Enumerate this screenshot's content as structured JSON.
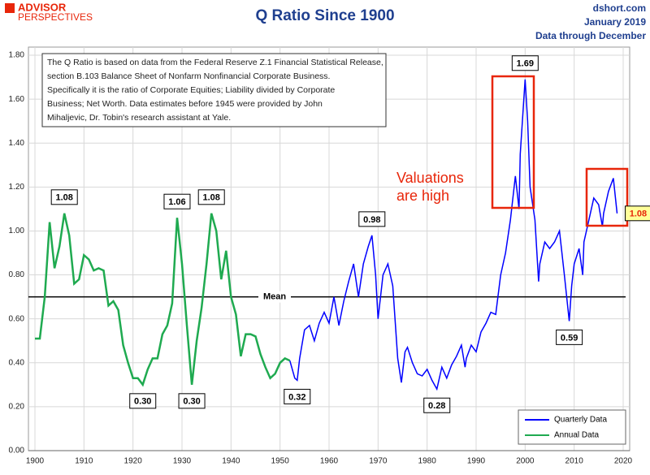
{
  "header": {
    "logo_top": "ADVISOR",
    "logo_bottom": "PERSPECTIVES",
    "source": "dshort.com",
    "date": "January 2019",
    "through": "Data through December"
  },
  "chart_data": {
    "type": "line",
    "title": "Q Ratio Since 1900",
    "note": [
      "The Q Ratio is based on data from the Federal Reserve Z.1 Financial Statistical Release,",
      "section B.103  Balance Sheet of Nonfarm Nonfinancial Corporate Business.",
      "Specifically it is the ratio  of Corporate Equities; Liability divided by Corporate",
      "Business; Net Worth.  Data estimates before 1945 were provided by John",
      "Mihaljevic, Dr. Tobin's research assistant at Yale."
    ],
    "comment": [
      "Valuations",
      "are high"
    ],
    "mean": {
      "value": 0.7,
      "label": "Mean"
    },
    "xlim": [
      1900,
      2020
    ],
    "xticks": [
      1900,
      1910,
      1920,
      1930,
      1940,
      1950,
      1960,
      1970,
      1980,
      1990,
      2000,
      2010,
      2020
    ],
    "ylim": [
      0,
      1.8
    ],
    "yticks": [
      {
        "value": 0,
        "label": "0.00"
      },
      {
        "value": 0.2,
        "label": "0.20"
      },
      {
        "value": 0.4,
        "label": "0.40"
      },
      {
        "value": 0.6,
        "label": "0.60"
      },
      {
        "value": 0.8,
        "label": "0.80"
      },
      {
        "value": 1,
        "label": "1.00"
      },
      {
        "value": 1.2,
        "label": "1.20"
      },
      {
        "value": 1.4,
        "label": "1.40"
      },
      {
        "value": 1.6,
        "label": "1.60"
      },
      {
        "value": 1.8,
        "label": "1.80"
      }
    ],
    "grid": true,
    "series": [
      {
        "name": "Quarterly Data",
        "color": "#0000ff",
        "x": [
          1952,
          1953,
          1953.5,
          1954,
          1955,
          1956,
          1957,
          1958,
          1959,
          1960,
          1961,
          1962,
          1963,
          1964,
          1965,
          1966,
          1967,
          1968,
          1968.75,
          1969.5,
          1970,
          1971,
          1972,
          1973,
          1974,
          1974.75,
          1975.5,
          1976,
          1977,
          1978,
          1979,
          1980,
          1981,
          1982,
          1983,
          1984,
          1985,
          1986,
          1987,
          1987.75,
          1988,
          1989,
          1990,
          1991,
          1992,
          1993,
          1994,
          1995,
          1996,
          1997,
          1998,
          1998.75,
          1999,
          2000,
          2000.5,
          2001,
          2002,
          2002.75,
          2003,
          2004,
          2005,
          2006,
          2007,
          2008,
          2009,
          2009.5,
          2010,
          2011,
          2011.75,
          2012,
          2013,
          2014,
          2015,
          2015.75,
          2016,
          2017,
          2018,
          2018.75
        ],
        "values": [
          0.41,
          0.33,
          0.32,
          0.42,
          0.55,
          0.57,
          0.5,
          0.58,
          0.63,
          0.58,
          0.7,
          0.57,
          0.68,
          0.77,
          0.85,
          0.7,
          0.85,
          0.93,
          0.98,
          0.8,
          0.6,
          0.8,
          0.85,
          0.75,
          0.42,
          0.31,
          0.45,
          0.47,
          0.4,
          0.35,
          0.34,
          0.37,
          0.32,
          0.28,
          0.38,
          0.33,
          0.39,
          0.43,
          0.48,
          0.38,
          0.42,
          0.48,
          0.45,
          0.54,
          0.58,
          0.63,
          0.62,
          0.8,
          0.9,
          1.05,
          1.25,
          1.1,
          1.35,
          1.69,
          1.5,
          1.2,
          1.05,
          0.77,
          0.85,
          0.95,
          0.92,
          0.95,
          1.0,
          0.8,
          0.59,
          0.75,
          0.85,
          0.92,
          0.8,
          0.95,
          1.05,
          1.15,
          1.12,
          1.02,
          1.08,
          1.18,
          1.24,
          1.08
        ]
      },
      {
        "name": "Annual Data",
        "color": "#1faa50",
        "x": [
          1900,
          1901,
          1902,
          1903,
          1904,
          1905,
          1906,
          1907,
          1908,
          1909,
          1910,
          1911,
          1912,
          1913,
          1914,
          1915,
          1916,
          1917,
          1918,
          1919,
          1920,
          1921,
          1922,
          1923,
          1924,
          1925,
          1926,
          1927,
          1928,
          1929,
          1930,
          1931,
          1932,
          1933,
          1934,
          1935,
          1936,
          1937,
          1938,
          1939,
          1940,
          1941,
          1942,
          1943,
          1944,
          1945,
          1946,
          1947,
          1948,
          1949,
          1950,
          1951,
          1952
        ],
        "values": [
          0.51,
          0.51,
          0.7,
          1.04,
          0.83,
          0.93,
          1.08,
          0.98,
          0.76,
          0.78,
          0.89,
          0.87,
          0.82,
          0.83,
          0.82,
          0.66,
          0.68,
          0.64,
          0.48,
          0.4,
          0.33,
          0.33,
          0.3,
          0.37,
          0.42,
          0.42,
          0.53,
          0.57,
          0.67,
          1.06,
          0.85,
          0.57,
          0.3,
          0.5,
          0.65,
          0.85,
          1.08,
          1.0,
          0.78,
          0.91,
          0.7,
          0.62,
          0.43,
          0.53,
          0.53,
          0.52,
          0.44,
          0.38,
          0.33,
          0.35,
          0.4,
          0.42,
          0.41
        ]
      }
    ],
    "legend": "lower right",
    "annotations": [
      {
        "label": "1.08",
        "x": 1906,
        "y": 1.08
      },
      {
        "label": "1.06",
        "x": 1929,
        "y": 1.06
      },
      {
        "label": "1.08",
        "x": 1936,
        "y": 1.08
      },
      {
        "label": "0.30",
        "x": 1922,
        "y": 0.3
      },
      {
        "label": "0.30",
        "x": 1932,
        "y": 0.3
      },
      {
        "label": "0.32",
        "x": 1953.5,
        "y": 0.32
      },
      {
        "label": "0.98",
        "x": 1968.75,
        "y": 0.98
      },
      {
        "label": "0.28",
        "x": 1982,
        "y": 0.28
      },
      {
        "label": "1.69",
        "x": 2000,
        "y": 1.69
      },
      {
        "label": "0.59",
        "x": 2009,
        "y": 0.59
      },
      {
        "label": "1.08",
        "x": 2018.75,
        "y": 1.08,
        "fill": "#ffff99",
        "color": "#e8260a"
      }
    ]
  }
}
